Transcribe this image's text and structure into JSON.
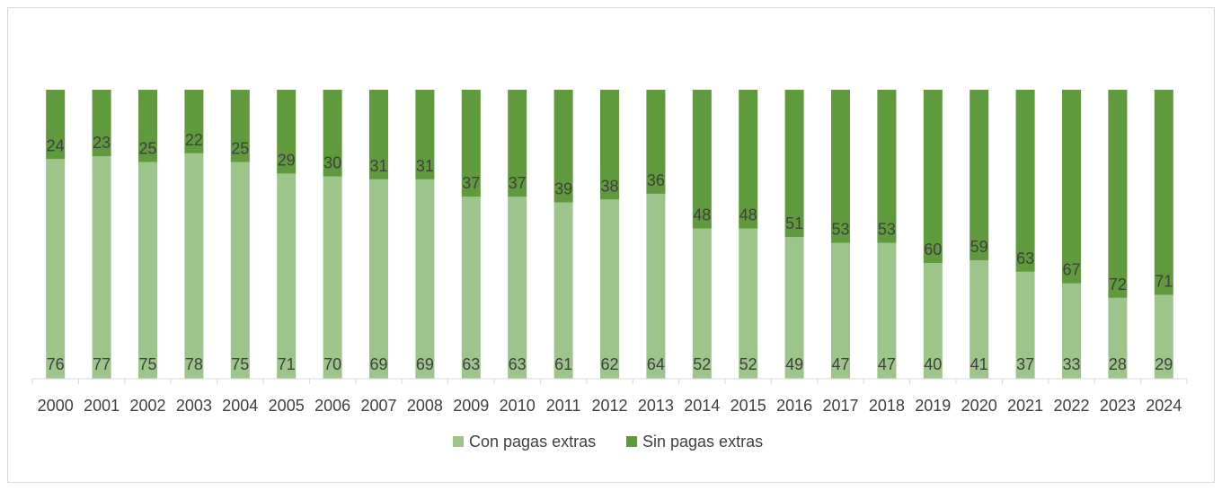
{
  "chart_data": {
    "type": "bar",
    "stacked": true,
    "percent_stacked": true,
    "categories": [
      "2000",
      "2001",
      "2002",
      "2003",
      "2004",
      "2005",
      "2006",
      "2007",
      "2008",
      "2009",
      "2010",
      "2011",
      "2012",
      "2013",
      "2014",
      "2015",
      "2016",
      "2017",
      "2018",
      "2019",
      "2020",
      "2021",
      "2022",
      "2023",
      "2024"
    ],
    "series": [
      {
        "name": "Con pagas extras",
        "color": "#9dc58b",
        "values": [
          76,
          77,
          75,
          78,
          75,
          71,
          70,
          69,
          69,
          63,
          63,
          61,
          62,
          64,
          52,
          52,
          49,
          47,
          47,
          40,
          41,
          37,
          33,
          28,
          29
        ]
      },
      {
        "name": "Sin pagas extras",
        "color": "#5f9a3c",
        "values": [
          24,
          23,
          25,
          22,
          25,
          29,
          30,
          31,
          31,
          37,
          37,
          39,
          38,
          36,
          48,
          48,
          51,
          53,
          53,
          60,
          59,
          63,
          67,
          72,
          71
        ]
      }
    ],
    "title": "",
    "xlabel": "",
    "ylabel": "",
    "ylim": [
      0,
      100
    ],
    "grid": false,
    "legend_position": "bottom",
    "data_labels": true
  }
}
